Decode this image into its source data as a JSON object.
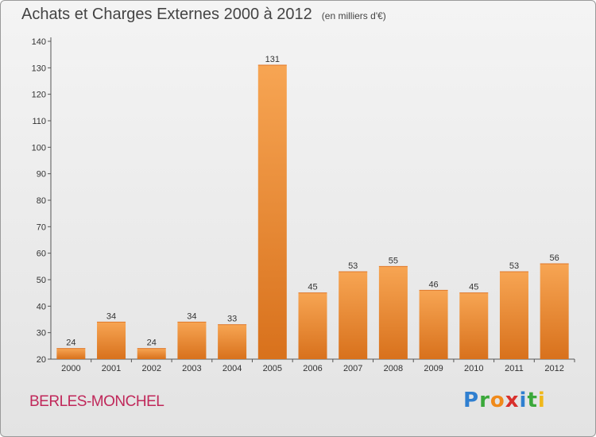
{
  "chart_data": {
    "type": "bar",
    "title": "Achats et Charges Externes 2000 à 2012",
    "unit": "(en milliers d'€)",
    "categories": [
      "2000",
      "2001",
      "2002",
      "2003",
      "2004",
      "2005",
      "2006",
      "2007",
      "2008",
      "2009",
      "2010",
      "2011",
      "2012"
    ],
    "values": [
      24,
      34,
      24,
      34,
      33,
      131,
      45,
      53,
      55,
      46,
      45,
      53,
      56
    ],
    "ylim": [
      20,
      140
    ],
    "yticks": [
      20,
      30,
      40,
      50,
      60,
      70,
      80,
      90,
      100,
      110,
      120,
      130,
      140
    ],
    "grid": false,
    "bar_color": "#f0922e",
    "bar_color_dark": "#d66f18"
  },
  "commune": "BERLES-MONCHEL",
  "brand": {
    "text": "Proxiti",
    "colors": [
      "#2f7fd0",
      "#3aa83a",
      "#f08a1a",
      "#d8302c",
      "#2f7fd0",
      "#3aa83a",
      "#f0b81a"
    ]
  }
}
